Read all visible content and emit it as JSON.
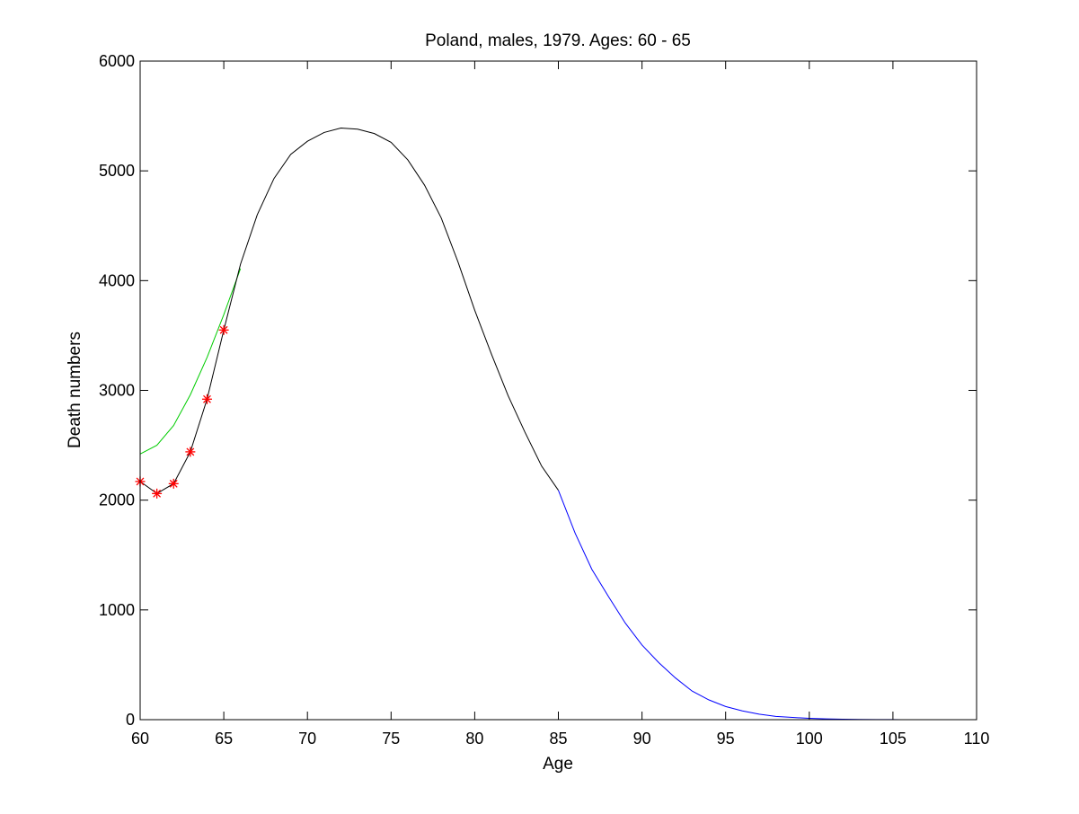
{
  "chart_data": {
    "type": "line",
    "title": "Poland, males, 1979. Ages: 60 - 65",
    "xlabel": "Age",
    "ylabel": "Death numbers",
    "xlim": [
      60,
      110
    ],
    "ylim": [
      0,
      6000
    ],
    "xticks": [
      60,
      65,
      70,
      75,
      80,
      85,
      90,
      95,
      100,
      105,
      110
    ],
    "yticks": [
      0,
      1000,
      2000,
      3000,
      4000,
      5000,
      6000
    ],
    "grid": false,
    "legend": "none",
    "series": [
      {
        "color": "#00cc00",
        "style": "line",
        "x": [
          60,
          61,
          62,
          63,
          64,
          65,
          66
        ],
        "y": [
          2420,
          2500,
          2680,
          2960,
          3300,
          3690,
          4110
        ]
      },
      {
        "color": "#000000",
        "style": "line",
        "x": [
          60,
          61,
          62,
          63,
          64,
          65,
          66,
          67,
          68,
          69,
          70,
          71,
          72,
          73,
          74,
          75,
          76,
          77,
          78,
          79,
          80,
          81,
          82,
          83,
          84,
          85
        ],
        "y": [
          2170,
          2060,
          2150,
          2440,
          2920,
          3550,
          4150,
          4600,
          4930,
          5150,
          5270,
          5350,
          5390,
          5380,
          5340,
          5260,
          5100,
          4870,
          4570,
          4170,
          3730,
          3330,
          2950,
          2620,
          2310,
          2090
        ]
      },
      {
        "color": "#0000ff",
        "style": "line",
        "x": [
          85,
          86,
          87,
          88,
          89,
          90,
          91,
          92,
          93,
          94,
          95,
          96,
          97,
          98,
          99,
          100,
          101,
          102,
          103,
          104,
          105,
          105.5
        ],
        "y": [
          2090,
          1700,
          1370,
          1120,
          880,
          680,
          520,
          380,
          260,
          180,
          120,
          80,
          50,
          30,
          20,
          12,
          7,
          4,
          2,
          1,
          1,
          0
        ]
      },
      {
        "color": "#ff0000",
        "style": "markers",
        "marker": "asterisk",
        "x": [
          60,
          61,
          62,
          63,
          64,
          65
        ],
        "y": [
          2170,
          2060,
          2150,
          2440,
          2920,
          3550
        ]
      }
    ]
  }
}
